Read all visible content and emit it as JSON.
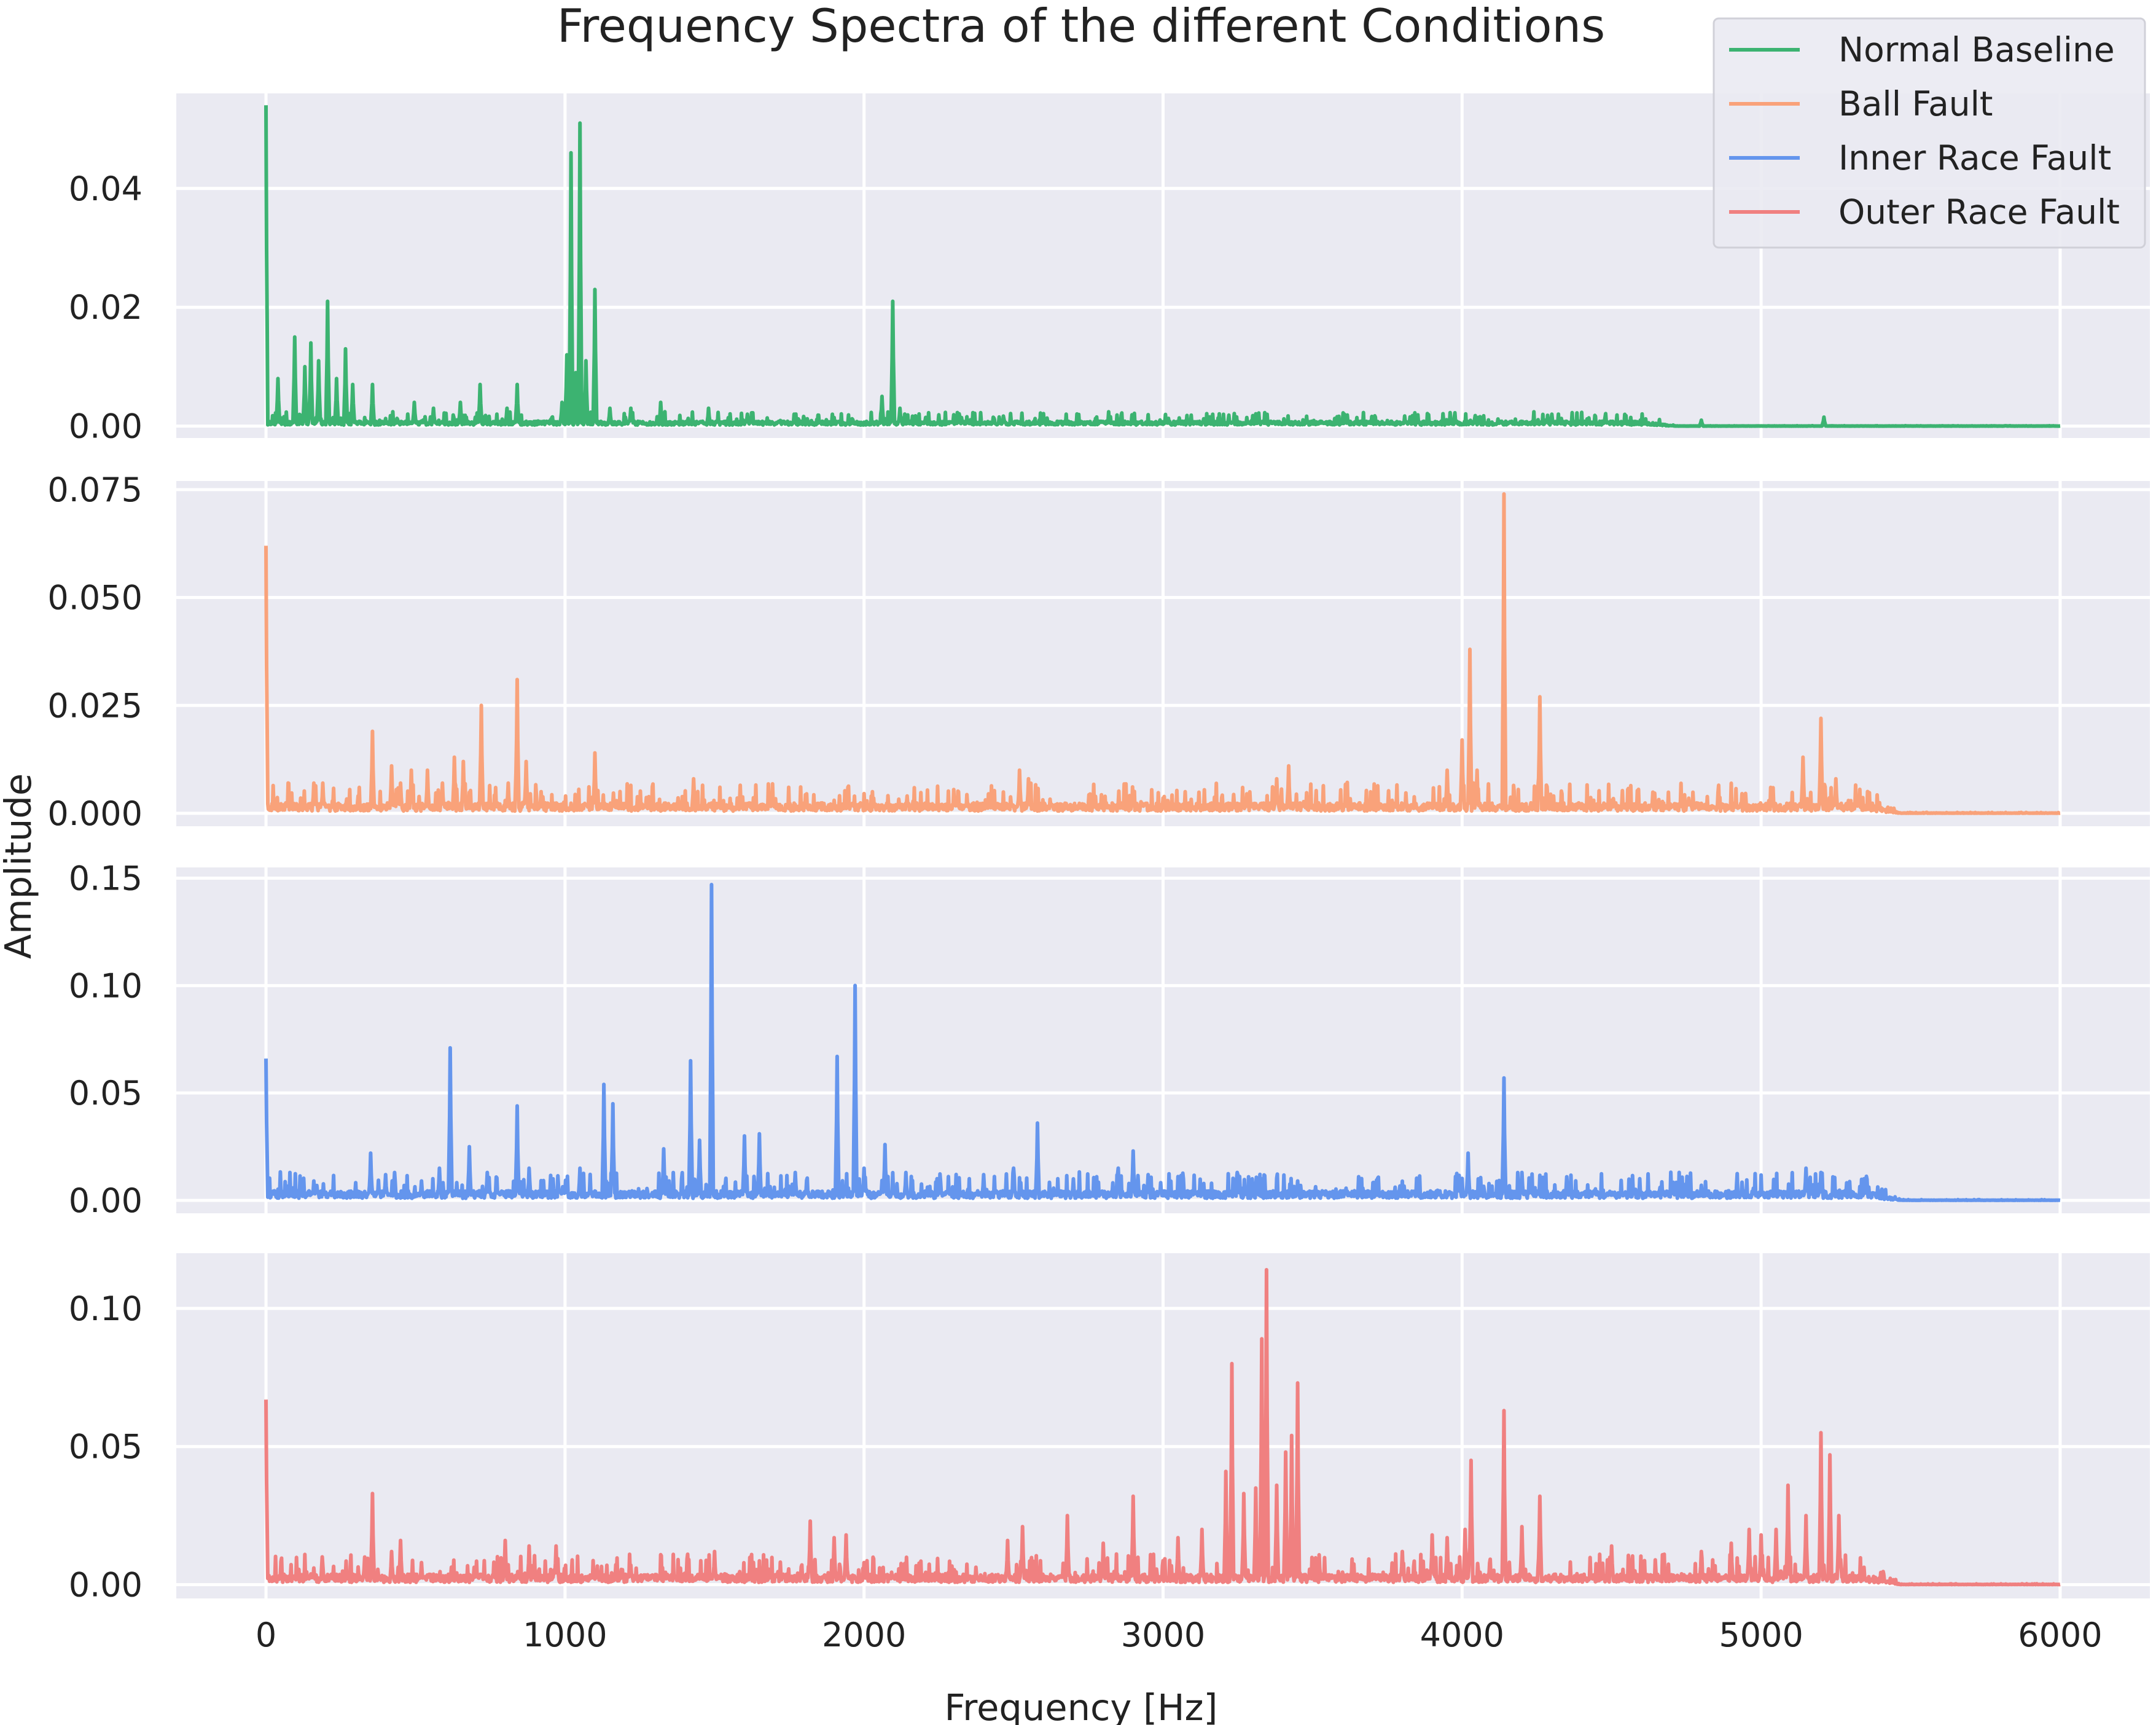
{
  "chart_data": {
    "type": "line",
    "title": "Frequency Spectra of the different Conditions",
    "xlabel": "Frequency [Hz]",
    "ylabel": "Amplitude",
    "xlim": [
      -300,
      6300
    ],
    "x_ticks": [
      0,
      1000,
      2000,
      3000,
      4000,
      5000,
      6000
    ],
    "x_tick_labels": [
      "0",
      "1000",
      "2000",
      "3000",
      "4000",
      "5000",
      "6000"
    ],
    "grid": true,
    "legend_placement": "top-right",
    "series": [
      {
        "name": "Normal Baseline",
        "color": "#3cb371",
        "ylim": [
          -0.002,
          0.056
        ],
        "y_ticks": [
          0,
          0.02,
          0.04
        ],
        "y_tick_labels": [
          "0.00",
          "0.02",
          "0.04"
        ],
        "peaks": [
          [
            0,
            0.054
          ],
          [
            40,
            0.008
          ],
          [
            95,
            0.015
          ],
          [
            130,
            0.01
          ],
          [
            150,
            0.014
          ],
          [
            175,
            0.011
          ],
          [
            205,
            0.021
          ],
          [
            235,
            0.008
          ],
          [
            265,
            0.013
          ],
          [
            290,
            0.007
          ],
          [
            355,
            0.007
          ],
          [
            495,
            0.004
          ],
          [
            560,
            0.003
          ],
          [
            650,
            0.004
          ],
          [
            715,
            0.007
          ],
          [
            805,
            0.003
          ],
          [
            840,
            0.007
          ],
          [
            990,
            0.004
          ],
          [
            1005,
            0.012
          ],
          [
            1020,
            0.046
          ],
          [
            1035,
            0.009
          ],
          [
            1050,
            0.051
          ],
          [
            1070,
            0.011
          ],
          [
            1100,
            0.023
          ],
          [
            1150,
            0.003
          ],
          [
            1220,
            0.003
          ],
          [
            1320,
            0.004
          ],
          [
            1480,
            0.003
          ],
          [
            1610,
            0.002
          ],
          [
            2060,
            0.005
          ],
          [
            2095,
            0.021
          ],
          [
            2120,
            0.003
          ],
          [
            4300,
            0.002
          ],
          [
            4800,
            0.001
          ],
          [
            5210,
            0.0015
          ]
        ],
        "noise": 0.0012,
        "noise_end": 4600
      },
      {
        "name": "Ball Fault",
        "color": "#f9a27a",
        "ylim": [
          -0.003,
          0.077
        ],
        "y_ticks": [
          0,
          0.025,
          0.05,
          0.075
        ],
        "y_tick_labels": [
          "0.000",
          "0.025",
          "0.050",
          "0.075"
        ],
        "peaks": [
          [
            0,
            0.062
          ],
          [
            160,
            0.007
          ],
          [
            190,
            0.007
          ],
          [
            355,
            0.019
          ],
          [
            420,
            0.011
          ],
          [
            450,
            0.007
          ],
          [
            485,
            0.01
          ],
          [
            540,
            0.01
          ],
          [
            590,
            0.007
          ],
          [
            630,
            0.013
          ],
          [
            660,
            0.012
          ],
          [
            720,
            0.025
          ],
          [
            810,
            0.007
          ],
          [
            840,
            0.031
          ],
          [
            870,
            0.012
          ],
          [
            920,
            0.005
          ],
          [
            1100,
            0.014
          ],
          [
            1430,
            0.008
          ],
          [
            1900,
            0.003
          ],
          [
            2520,
            0.01
          ],
          [
            2550,
            0.008
          ],
          [
            3000,
            0.003
          ],
          [
            3380,
            0.008
          ],
          [
            3420,
            0.011
          ],
          [
            3950,
            0.01
          ],
          [
            4000,
            0.017
          ],
          [
            4025,
            0.038
          ],
          [
            4050,
            0.01
          ],
          [
            4140,
            0.074
          ],
          [
            4260,
            0.027
          ],
          [
            4500,
            0.003
          ],
          [
            4800,
            0.002
          ],
          [
            5140,
            0.013
          ],
          [
            5200,
            0.022
          ],
          [
            5250,
            0.008
          ]
        ],
        "noise": 0.0035,
        "noise_end": 5350
      },
      {
        "name": "Inner Race Fault",
        "color": "#6495ed",
        "ylim": [
          -0.006,
          0.155
        ],
        "y_ticks": [
          0,
          0.05,
          0.1,
          0.15
        ],
        "y_tick_labels": [
          "0.00",
          "0.05",
          "0.10",
          "0.15"
        ],
        "peaks": [
          [
            0,
            0.066
          ],
          [
            160,
            0.009
          ],
          [
            350,
            0.022
          ],
          [
            400,
            0.012
          ],
          [
            430,
            0.013
          ],
          [
            520,
            0.009
          ],
          [
            580,
            0.015
          ],
          [
            615,
            0.071
          ],
          [
            680,
            0.025
          ],
          [
            740,
            0.013
          ],
          [
            840,
            0.044
          ],
          [
            880,
            0.015
          ],
          [
            960,
            0.01
          ],
          [
            1050,
            0.015
          ],
          [
            1130,
            0.054
          ],
          [
            1160,
            0.045
          ],
          [
            1330,
            0.024
          ],
          [
            1420,
            0.065
          ],
          [
            1450,
            0.028
          ],
          [
            1490,
            0.147
          ],
          [
            1600,
            0.03
          ],
          [
            1650,
            0.031
          ],
          [
            1770,
            0.013
          ],
          [
            1910,
            0.067
          ],
          [
            1970,
            0.1
          ],
          [
            2000,
            0.015
          ],
          [
            2070,
            0.026
          ],
          [
            2140,
            0.013
          ],
          [
            2400,
            0.012
          ],
          [
            2500,
            0.015
          ],
          [
            2580,
            0.036
          ],
          [
            2700,
            0.01
          ],
          [
            2850,
            0.015
          ],
          [
            2900,
            0.023
          ],
          [
            2950,
            0.012
          ],
          [
            3250,
            0.012
          ],
          [
            3450,
            0.009
          ],
          [
            4020,
            0.022
          ],
          [
            4140,
            0.057
          ],
          [
            4200,
            0.013
          ],
          [
            4350,
            0.011
          ],
          [
            4800,
            0.007
          ],
          [
            5150,
            0.015
          ],
          [
            5200,
            0.013
          ]
        ],
        "noise": 0.0065,
        "noise_end": 5350
      },
      {
        "name": "Outer Race Fault",
        "color": "#f08080",
        "ylim": [
          -0.005,
          0.12
        ],
        "y_ticks": [
          0,
          0.05,
          0.1
        ],
        "y_tick_labels": [
          "0.00",
          "0.05",
          "0.10"
        ],
        "peaks": [
          [
            0,
            0.067
          ],
          [
            160,
            0.006
          ],
          [
            190,
            0.007
          ],
          [
            330,
            0.01
          ],
          [
            355,
            0.033
          ],
          [
            420,
            0.012
          ],
          [
            450,
            0.016
          ],
          [
            520,
            0.008
          ],
          [
            800,
            0.016
          ],
          [
            880,
            0.014
          ],
          [
            970,
            0.014
          ],
          [
            1220,
            0.007
          ],
          [
            1410,
            0.011
          ],
          [
            1500,
            0.012
          ],
          [
            1620,
            0.01
          ],
          [
            1820,
            0.023
          ],
          [
            1900,
            0.017
          ],
          [
            1940,
            0.018
          ],
          [
            2000,
            0.008
          ],
          [
            2480,
            0.016
          ],
          [
            2530,
            0.021
          ],
          [
            2680,
            0.025
          ],
          [
            2800,
            0.015
          ],
          [
            2900,
            0.032
          ],
          [
            3050,
            0.017
          ],
          [
            3130,
            0.02
          ],
          [
            3210,
            0.041
          ],
          [
            3230,
            0.08
          ],
          [
            3270,
            0.033
          ],
          [
            3310,
            0.035
          ],
          [
            3330,
            0.089
          ],
          [
            3345,
            0.114
          ],
          [
            3380,
            0.036
          ],
          [
            3410,
            0.048
          ],
          [
            3430,
            0.054
          ],
          [
            3450,
            0.073
          ],
          [
            3800,
            0.012
          ],
          [
            3900,
            0.018
          ],
          [
            3950,
            0.017
          ],
          [
            4010,
            0.02
          ],
          [
            4030,
            0.045
          ],
          [
            4140,
            0.063
          ],
          [
            4200,
            0.021
          ],
          [
            4260,
            0.032
          ],
          [
            4500,
            0.014
          ],
          [
            4800,
            0.012
          ],
          [
            4900,
            0.015
          ],
          [
            4960,
            0.02
          ],
          [
            5000,
            0.018
          ],
          [
            5050,
            0.02
          ],
          [
            5090,
            0.036
          ],
          [
            5150,
            0.025
          ],
          [
            5200,
            0.055
          ],
          [
            5230,
            0.047
          ],
          [
            5260,
            0.025
          ]
        ],
        "noise": 0.0055,
        "noise_end": 5350
      }
    ]
  }
}
